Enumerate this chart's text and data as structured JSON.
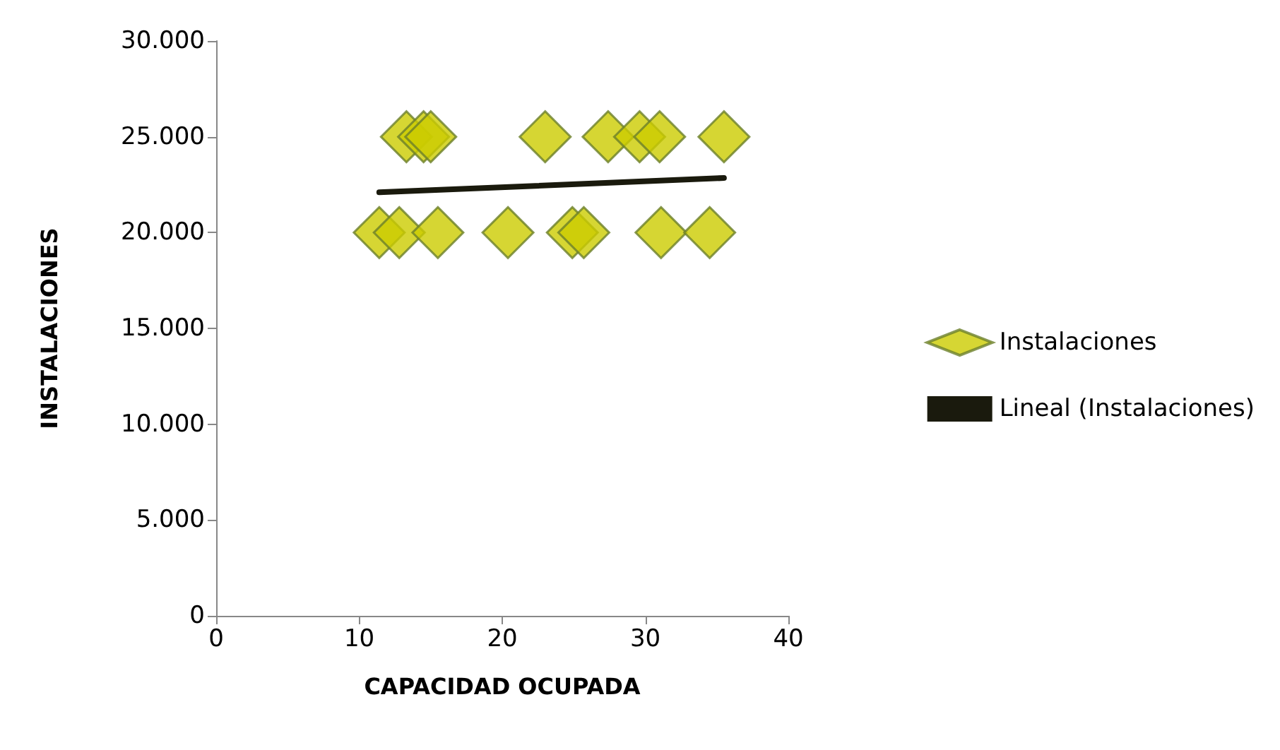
{
  "chart_data": {
    "type": "scatter",
    "xlabel": "CAPACIDAD OCUPADA",
    "ylabel": "INSTALACIONES",
    "xlim": [
      0,
      40
    ],
    "xticks": [
      0,
      10,
      20,
      30,
      40
    ],
    "ylim": [
      0,
      30000
    ],
    "yticks": [
      0,
      {
        "value": 5000,
        "label": "5.000"
      },
      {
        "value": 10000,
        "label": "10.000"
      },
      {
        "value": 15000,
        "label": "15.000"
      },
      {
        "value": 20000,
        "label": "20.000"
      },
      {
        "value": 25000,
        "label": "25.000"
      },
      {
        "value": 30000,
        "label": "30.000"
      }
    ],
    "grid": false,
    "legend": "right",
    "series": [
      {
        "name": "Instalaciones",
        "marker": "diamond",
        "color": "#cccc00",
        "x": [
          13.3,
          14.5,
          15.0,
          23.0,
          27.4,
          29.6,
          31.0,
          35.5,
          11.4,
          12.8,
          15.5,
          20.4,
          24.9,
          25.7,
          31.1,
          34.5
        ],
        "values": [
          25000,
          25000,
          25000,
          25000,
          25000,
          25000,
          25000,
          25000,
          20000,
          20000,
          20000,
          20000,
          20000,
          20000,
          20000,
          20000
        ]
      },
      {
        "name": "Lineal (Instalaciones)",
        "type": "line",
        "marker": "none",
        "color": "#1a1a0d",
        "x": [
          11.4,
          35.5
        ],
        "values": [
          22100,
          22850
        ]
      }
    ]
  }
}
